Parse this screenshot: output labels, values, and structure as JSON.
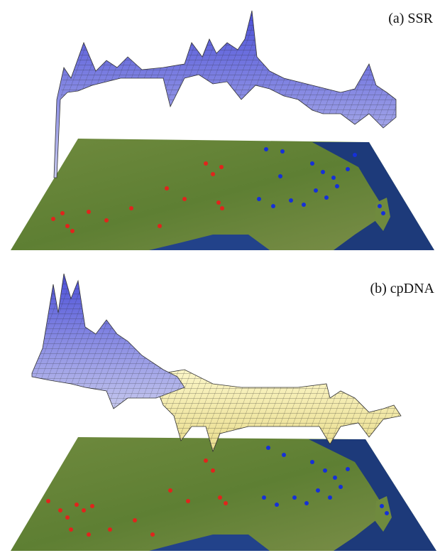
{
  "panels": [
    {
      "label": "(a) SSR"
    },
    {
      "label": "(b) cpDNA"
    }
  ]
}
